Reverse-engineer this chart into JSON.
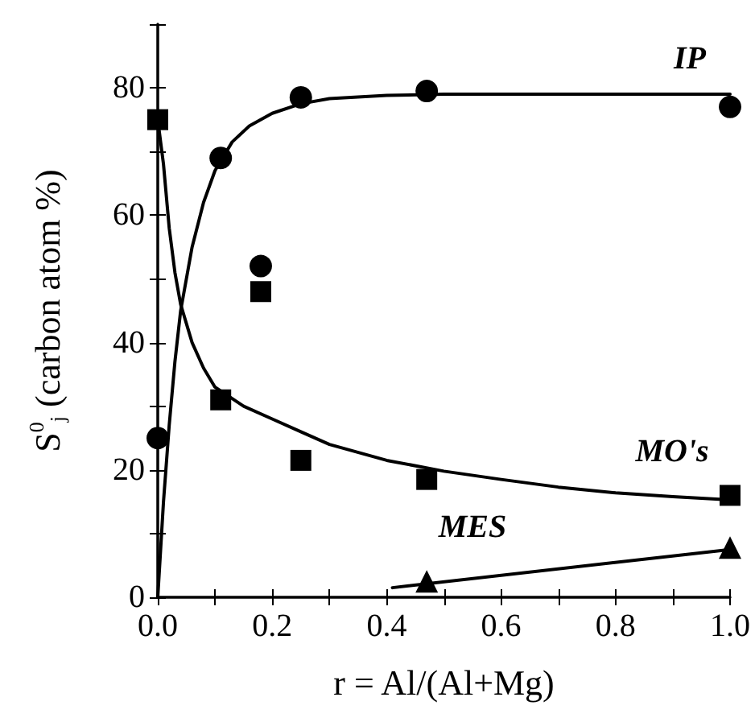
{
  "chart_data": {
    "type": "scatter",
    "xlabel": "r = Al/(Al+Mg)",
    "ylabel": "S$^{0}$$_{j}$ (carbon atom %)",
    "xlim": [
      0,
      1
    ],
    "ylim": [
      0,
      90
    ],
    "xticks": [
      {
        "value": 0,
        "label": "0.0"
      },
      {
        "value": 0.1,
        "label": null
      },
      {
        "value": 0.2,
        "label": "0.2"
      },
      {
        "value": 0.3,
        "label": null
      },
      {
        "value": 0.4,
        "label": "0.4"
      },
      {
        "value": 0.5,
        "label": null
      },
      {
        "value": 0.6,
        "label": "0.6"
      },
      {
        "value": 0.7,
        "label": null
      },
      {
        "value": 0.8,
        "label": "0.8"
      },
      {
        "value": 0.9,
        "label": null
      },
      {
        "value": 1,
        "label": "1.0"
      }
    ],
    "yticks": [
      0,
      {
        "value": 10,
        "label": null
      },
      20,
      {
        "value": 30,
        "label": null
      },
      40,
      {
        "value": 50,
        "label": null
      },
      60,
      {
        "value": 70,
        "label": null
      },
      80,
      {
        "value": 90,
        "label": null
      }
    ],
    "grid": false,
    "series": [
      {
        "marker": "circle",
        "color": "#000000",
        "x": [
          0,
          0.11,
          0.18,
          0.25,
          0.47,
          1.0
        ],
        "values": [
          25,
          69,
          52,
          78.5,
          79.5,
          77
        ]
      },
      {
        "marker": "square",
        "color": "#000000",
        "x": [
          0,
          0.11,
          0.18,
          0.25,
          0.47,
          1.0
        ],
        "values": [
          75,
          31,
          48,
          21.5,
          18.5,
          16
        ]
      },
      {
        "marker": "triangle",
        "color": "#000000",
        "x": [
          0.47,
          1.0
        ],
        "values": [
          2.5,
          7.8
        ]
      },
      {
        "type": "line",
        "name": "IP",
        "marker": "none",
        "line_style": "solid",
        "color": "#000000",
        "x": [
          0,
          0.01,
          0.02,
          0.03,
          0.04,
          0.06,
          0.08,
          0.1,
          0.13,
          0.16,
          0.2,
          0.25,
          0.3,
          0.4,
          0.5,
          0.7,
          1.0
        ],
        "values": [
          0,
          15,
          27,
          37,
          45,
          55,
          62,
          67,
          71.5,
          74,
          76,
          77.5,
          78.3,
          78.8,
          79,
          79,
          79
        ]
      },
      {
        "type": "line",
        "name": "MO's",
        "marker": "none",
        "line_style": "solid",
        "color": "#000000",
        "x": [
          0,
          0.01,
          0.02,
          0.03,
          0.04,
          0.06,
          0.08,
          0.1,
          0.15,
          0.2,
          0.25,
          0.3,
          0.4,
          0.5,
          0.6,
          0.7,
          0.8,
          0.9,
          1.0
        ],
        "values": [
          75,
          68,
          58,
          51,
          46,
          40,
          36,
          33,
          30,
          28,
          26,
          24,
          21.5,
          19.8,
          18.5,
          17.3,
          16.4,
          15.8,
          15.3
        ]
      },
      {
        "type": "line",
        "name": "MES",
        "marker": "none",
        "line_style": "solid",
        "color": "#000000",
        "x": [
          0.41,
          1.0
        ],
        "values": [
          1.5,
          7.5
        ]
      }
    ]
  }
}
